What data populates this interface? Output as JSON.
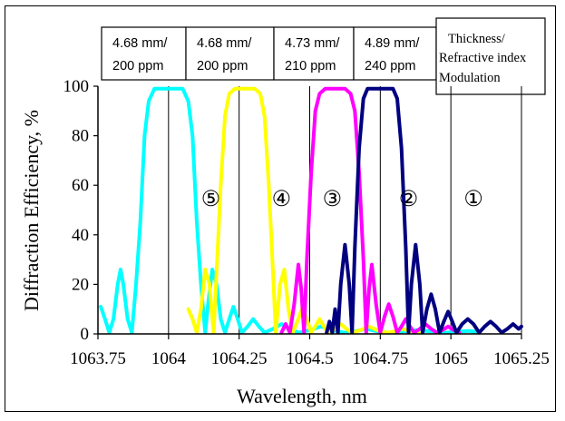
{
  "chart_data": {
    "type": "line",
    "xlabel": "Wavelength, nm",
    "ylabel": "Diffraction Efficiency, %",
    "xlim": [
      1063.75,
      1065.25
    ],
    "ylim": [
      0,
      100
    ],
    "x_ticks": [
      "1063.75",
      "1064",
      "1064.25",
      "1064.5",
      "1064.75",
      "1065",
      "1065.25"
    ],
    "y_ticks": [
      "0",
      "20",
      "40",
      "60",
      "80",
      "100"
    ],
    "grid": "vertical lines at each x tick",
    "series": [
      {
        "color": "#00ffff",
        "points": [
          [
            1063.76,
            11
          ],
          [
            1063.775,
            6
          ],
          [
            1063.79,
            0.5
          ],
          [
            1063.805,
            6
          ],
          [
            1063.82,
            20
          ],
          [
            1063.83,
            26
          ],
          [
            1063.84,
            20
          ],
          [
            1063.855,
            6
          ],
          [
            1063.87,
            0.5
          ],
          [
            1063.885,
            20
          ],
          [
            1063.9,
            45
          ],
          [
            1063.915,
            80
          ],
          [
            1063.93,
            94
          ],
          [
            1063.95,
            99
          ],
          [
            1064.0,
            99
          ],
          [
            1064.05,
            99
          ],
          [
            1064.07,
            94
          ],
          [
            1064.085,
            80
          ],
          [
            1064.1,
            45
          ],
          [
            1064.115,
            20
          ],
          [
            1064.13,
            0.5
          ],
          [
            1064.14,
            12
          ],
          [
            1064.155,
            26
          ],
          [
            1064.17,
            20
          ],
          [
            1064.185,
            6
          ],
          [
            1064.2,
            0.5
          ],
          [
            1064.215,
            6
          ],
          [
            1064.23,
            11
          ],
          [
            1064.245,
            6
          ],
          [
            1064.26,
            0.5
          ],
          [
            1064.28,
            3
          ],
          [
            1064.3,
            6
          ],
          [
            1064.32,
            3
          ],
          [
            1064.34,
            0.5
          ],
          [
            1064.37,
            2
          ],
          [
            1064.4,
            4
          ],
          [
            1064.43,
            2
          ],
          [
            1064.46,
            0.5
          ],
          [
            1064.5,
            1.5
          ],
          [
            1064.54,
            3
          ],
          [
            1064.58,
            1.5
          ],
          [
            1064.62,
            0.5
          ],
          [
            1064.66,
            1
          ],
          [
            1064.7,
            2
          ],
          [
            1064.74,
            1
          ],
          [
            1064.78,
            0.5
          ],
          [
            1064.83,
            1
          ],
          [
            1064.88,
            1.5
          ],
          [
            1064.93,
            1
          ],
          [
            1064.98,
            0.5
          ],
          [
            1065.02,
            0.8
          ],
          [
            1065.06,
            1.2
          ],
          [
            1065.1,
            0.8
          ]
        ]
      },
      {
        "color": "#ffff00",
        "points": [
          [
            1064.07,
            10
          ],
          [
            1064.085,
            6
          ],
          [
            1064.1,
            0.5
          ],
          [
            1064.115,
            10
          ],
          [
            1064.13,
            26
          ],
          [
            1064.145,
            20
          ],
          [
            1064.16,
            0.5
          ],
          [
            1064.17,
            25
          ],
          [
            1064.185,
            60
          ],
          [
            1064.2,
            88
          ],
          [
            1064.215,
            97
          ],
          [
            1064.235,
            99
          ],
          [
            1064.27,
            99
          ],
          [
            1064.305,
            99
          ],
          [
            1064.325,
            97
          ],
          [
            1064.34,
            88
          ],
          [
            1064.355,
            60
          ],
          [
            1064.37,
            25
          ],
          [
            1064.38,
            0.5
          ],
          [
            1064.395,
            20
          ],
          [
            1064.41,
            26
          ],
          [
            1064.425,
            10
          ],
          [
            1064.44,
            0.5
          ],
          [
            1064.46,
            6
          ],
          [
            1064.475,
            11
          ],
          [
            1064.49,
            6
          ],
          [
            1064.505,
            0.5
          ],
          [
            1064.52,
            3
          ],
          [
            1064.535,
            6
          ],
          [
            1064.55,
            3
          ],
          [
            1064.565,
            0.5
          ],
          [
            1064.59,
            2
          ],
          [
            1064.61,
            4
          ],
          [
            1064.63,
            2
          ],
          [
            1064.65,
            0.5
          ],
          [
            1064.68,
            1.5
          ],
          [
            1064.71,
            3
          ],
          [
            1064.74,
            1.5
          ],
          [
            1064.77,
            0.5
          ],
          [
            1064.8,
            1
          ],
          [
            1064.83,
            2
          ],
          [
            1064.86,
            1
          ],
          [
            1064.89,
            0.5
          ]
        ]
      },
      {
        "color": "#ff00ff",
        "points": [
          [
            1064.4,
            0.5
          ],
          [
            1064.415,
            4
          ],
          [
            1064.43,
            0.5
          ],
          [
            1064.445,
            12
          ],
          [
            1064.46,
            28
          ],
          [
            1064.47,
            18
          ],
          [
            1064.48,
            0.5
          ],
          [
            1064.49,
            30
          ],
          [
            1064.505,
            65
          ],
          [
            1064.52,
            90
          ],
          [
            1064.535,
            97
          ],
          [
            1064.555,
            99
          ],
          [
            1064.59,
            99
          ],
          [
            1064.625,
            99
          ],
          [
            1064.645,
            97
          ],
          [
            1064.66,
            90
          ],
          [
            1064.675,
            65
          ],
          [
            1064.69,
            30
          ],
          [
            1064.7,
            0.5
          ],
          [
            1064.71,
            18
          ],
          [
            1064.72,
            28
          ],
          [
            1064.735,
            12
          ],
          [
            1064.75,
            0.5
          ],
          [
            1064.765,
            7
          ],
          [
            1064.78,
            12
          ],
          [
            1064.795,
            7
          ],
          [
            1064.81,
            0.5
          ],
          [
            1064.825,
            3
          ],
          [
            1064.84,
            6
          ],
          [
            1064.855,
            3
          ],
          [
            1064.87,
            0.5
          ],
          [
            1064.89,
            2
          ],
          [
            1064.91,
            4
          ],
          [
            1064.93,
            2
          ],
          [
            1064.95,
            0.5
          ],
          [
            1064.97,
            1.5
          ],
          [
            1064.99,
            3
          ],
          [
            1065.01,
            1.5
          ],
          [
            1065.03,
            0.5
          ]
        ]
      },
      {
        "color": "#000080",
        "points": [
          [
            1064.56,
            0.5
          ],
          [
            1064.57,
            5
          ],
          [
            1064.58,
            0.5
          ],
          [
            1064.59,
            10
          ],
          [
            1064.6,
            0.5
          ],
          [
            1064.61,
            20
          ],
          [
            1064.625,
            36
          ],
          [
            1064.64,
            20
          ],
          [
            1064.65,
            0.5
          ],
          [
            1064.66,
            35
          ],
          [
            1064.675,
            75
          ],
          [
            1064.69,
            95
          ],
          [
            1064.705,
            99
          ],
          [
            1064.75,
            99
          ],
          [
            1064.795,
            99
          ],
          [
            1064.81,
            95
          ],
          [
            1064.825,
            75
          ],
          [
            1064.84,
            35
          ],
          [
            1064.85,
            0.5
          ],
          [
            1064.86,
            20
          ],
          [
            1064.875,
            36
          ],
          [
            1064.89,
            20
          ],
          [
            1064.9,
            0.5
          ],
          [
            1064.915,
            10
          ],
          [
            1064.93,
            16
          ],
          [
            1064.945,
            10
          ],
          [
            1064.96,
            0.5
          ],
          [
            1064.975,
            5
          ],
          [
            1064.99,
            9
          ],
          [
            1065.005,
            5
          ],
          [
            1065.02,
            0.5
          ],
          [
            1065.04,
            4
          ],
          [
            1065.06,
            6
          ],
          [
            1065.08,
            4
          ],
          [
            1065.1,
            0.5
          ],
          [
            1065.12,
            3
          ],
          [
            1065.14,
            5
          ],
          [
            1065.16,
            3
          ],
          [
            1065.18,
            0.5
          ],
          [
            1065.2,
            2
          ],
          [
            1065.22,
            4
          ],
          [
            1065.24,
            2
          ],
          [
            1065.25,
            3
          ]
        ]
      }
    ],
    "column_labels": [
      "⑤",
      "④",
      "③",
      "②",
      "①"
    ],
    "column_label_x": [
      1064.15,
      1064.4,
      1064.58,
      1064.85,
      1065.08
    ],
    "column_label_y": 55,
    "legend_boxes": [
      {
        "line1": "4.68 mm/",
        "line2": "200 ppm"
      },
      {
        "line1": "4.68 mm/",
        "line2": "200 ppm"
      },
      {
        "line1": "4.73 mm/",
        "line2": "210 ppm"
      },
      {
        "line1": "4.89 mm/",
        "line2": "240 ppm"
      }
    ],
    "legend_note": [
      "Thickness/",
      "Refractive index",
      "Modulation"
    ]
  }
}
